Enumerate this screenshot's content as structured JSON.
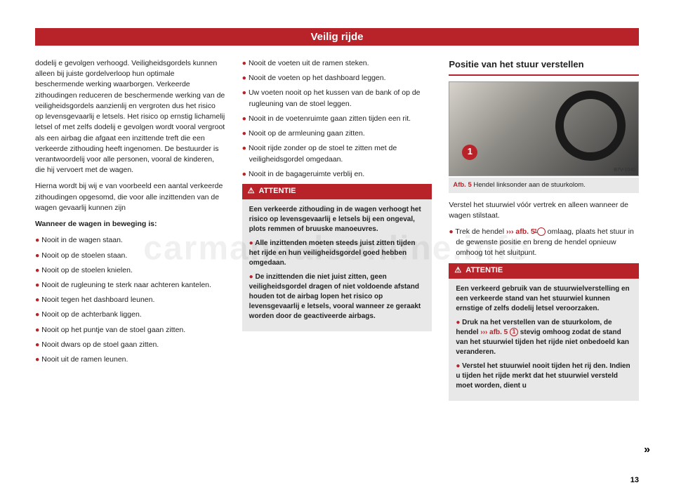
{
  "header": {
    "title": "Veilig rijde"
  },
  "col1": {
    "para1": "dodelij e gevolgen verhoogd. Veiligheidsgordels kunnen alleen bij juiste gordelverloop hun optimale beschermende werking waarborgen. Verkeerde zithoudingen reduceren de beschermende werking van de veiligheidsgordels aanzienlij en vergroten dus het risico op levensgevaarlij e letsels. Het risico op ernstig lichamelij letsel of met zelfs dodelij e gevolgen wordt vooral vergroot als een airbag die afgaat een inzittende treft die een verkeerde zithouding heeft ingenomen. De bestuurder is verantwoordelij voor alle personen, vooral de kinderen, die hij vervoert met de wagen.",
    "para2": "Hierna wordt bij wij e van voorbeeld een aantal verkeerde zithoudingen opgesomd, die voor alle inzittenden van de wagen gevaarlij kunnen zijn",
    "subhead": "Wanneer de wagen in beweging is:",
    "bullets": [
      "Nooit in de wagen staan.",
      "Nooit op de stoelen staan.",
      "Nooit op de stoelen knielen.",
      "Nooit de rugleuning te sterk naar achteren kantelen.",
      "Nooit tegen het dashboard leunen.",
      "Nooit op de achterbank liggen.",
      "Nooit op het puntje van de stoel gaan zitten.",
      "Nooit dwars op de stoel gaan zitten.",
      "Nooit uit de ramen leunen."
    ]
  },
  "col2": {
    "bullets": [
      "Nooit de voeten uit de ramen steken.",
      "Nooit de voeten op het dashboard leggen.",
      "Uw voeten nooit op het kussen van de bank of op de rugleuning van de stoel leggen.",
      "Nooit in de voetenruimte gaan zitten tijden een rit.",
      "Nooit op de armleuning gaan zitten.",
      "Nooit rijde zonder op de stoel te zitten met de veiligheidsgordel omgedaan.",
      "Nooit in de bagageruimte verblij en."
    ],
    "attentie": {
      "label": "ATTENTIE",
      "p1": "Een verkeerde zithouding in de wagen verhoogt het risico op levensgevaarlij e letsels bij een ongeval, plots remmen of bruuske manoeuvres.",
      "b1": "Alle inzittenden moeten steeds juist zitten tijden het rijde en hun veiligheidsgordel goed hebben omgedaan.",
      "b2": "De inzittenden die niet juist zitten, geen veiligheidsgordel dragen of niet voldoende afstand houden tot de airbag lopen het risico op levensgevaarlij e letsels, vooral wanneer ze geraakt worden door de geactiveerde airbags."
    }
  },
  "col3": {
    "section_title": "Positie van het stuur verstellen",
    "figure": {
      "marker": "1",
      "code": "B7V-1040",
      "caption_ref": "Afb. 5",
      "caption_text": "Hendel linksonder aan de stuurkolom."
    },
    "para1": "Verstel het stuurwiel vóór vertrek en alleen wanneer de wagen stilstaat.",
    "bullet_pre": "Trek de hendel ",
    "bullet_ref": "››› afb. 5",
    "bullet_circ": "1",
    "bullet_post": " omlaag, plaats het stuur in de gewenste positie en breng de hendel opnieuw omhoog tot het sluitpunt.",
    "attentie": {
      "label": "ATTENTIE",
      "p1": "Een verkeerd gebruik van de stuurwielverstelling en een verkeerde stand van het stuurwiel kunnen ernstige of zelfs dodelij letsel veroorzaken.",
      "b1_pre": "Druk na het verstellen van de stuurkolom, de hendel ",
      "b1_ref": "››› afb. 5",
      "b1_circ": "1",
      "b1_post": " stevig omhoog zodat de stand van het stuurwiel tijden het rijde niet onbedoeld kan veranderen.",
      "b2": "Verstel het stuurwiel nooit tijden het rij den. Indien u tijden het rijde merkt dat het stuurwiel versteld moet worden, dient u"
    }
  },
  "page_number": "13",
  "cont": "»",
  "watermark": "carmanualsonline.info"
}
